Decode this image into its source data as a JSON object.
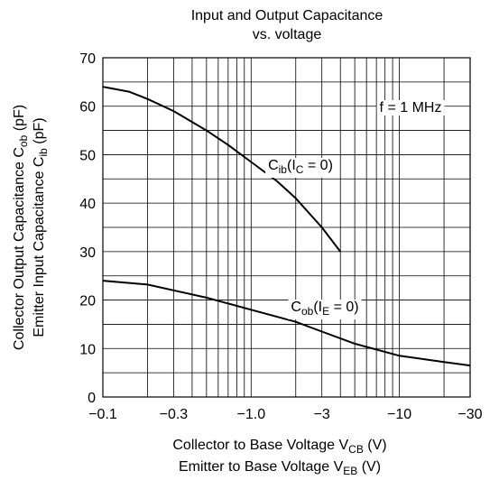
{
  "chart_data": {
    "type": "line",
    "title_lines": [
      "Input and Output Capacitance",
      "vs. voltage"
    ],
    "xlabel_lines": [
      [
        "Collector to Base Voltage  V",
        "CB",
        "  (V)"
      ],
      [
        "Emitter to Base Voltage  V",
        "EB",
        "  (V)"
      ]
    ],
    "ylabel_lines": [
      [
        "Collector Output Capacitance  C",
        "ob",
        "  (pF)"
      ],
      [
        "Emitter Input Capacitance  C",
        "ib",
        "  (pF)"
      ]
    ],
    "xscale": "log",
    "xlim": [
      -0.1,
      -30
    ],
    "ylim": [
      0,
      70
    ],
    "xticks": [
      {
        "value": -0.1,
        "label": "−0.1"
      },
      {
        "value": -0.3,
        "label": "−0.3"
      },
      {
        "value": -1,
        "label": "−1.0"
      },
      {
        "value": -3,
        "label": "−3"
      },
      {
        "value": -10,
        "label": "−10"
      },
      {
        "value": -30,
        "label": "−30"
      }
    ],
    "yticks": [
      0,
      10,
      20,
      30,
      40,
      50,
      60,
      70
    ],
    "xgrid": [
      -0.1,
      -0.2,
      -0.3,
      -0.4,
      -0.5,
      -0.6,
      -0.7,
      -0.8,
      -0.9,
      -1,
      -2,
      -3,
      -4,
      -5,
      -6,
      -7,
      -8,
      -9,
      -10,
      -20,
      -30
    ],
    "ygrid": [
      0,
      5,
      10,
      15,
      20,
      25,
      30,
      35,
      40,
      45,
      50,
      55,
      60,
      65,
      70
    ],
    "grid": true,
    "series": [
      {
        "name": [
          "C",
          "ib",
          "(I",
          "C",
          " = 0)"
        ],
        "color": "#000000",
        "x": [
          -0.1,
          -0.15,
          -0.2,
          -0.3,
          -0.5,
          -0.7,
          -1,
          -1.5,
          -2,
          -3,
          -4
        ],
        "values": [
          64,
          63,
          61.5,
          59,
          55,
          52,
          48.5,
          44.5,
          41,
          35,
          30
        ]
      },
      {
        "name": [
          "C",
          "ob",
          "(I",
          "E",
          " = 0)"
        ],
        "color": "#000000",
        "x": [
          -0.1,
          -0.2,
          -0.3,
          -0.5,
          -1,
          -2,
          -3,
          -5,
          -10,
          -20,
          -30
        ],
        "values": [
          24,
          23.2,
          22,
          20.5,
          18,
          15.5,
          13.5,
          11,
          8.5,
          7.2,
          6.5
        ]
      }
    ],
    "annotation": "f = 1 MHz"
  }
}
